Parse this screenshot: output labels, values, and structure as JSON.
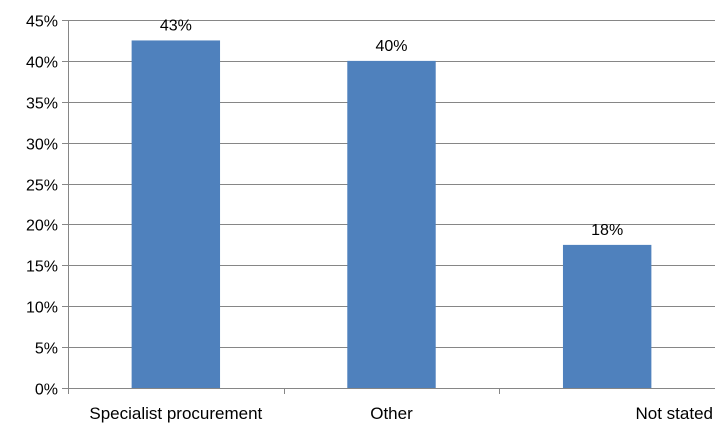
{
  "chart_data": {
    "type": "bar",
    "categories": [
      "Specialist procurement",
      "Other",
      "Not stated"
    ],
    "values": [
      42.5,
      40.0,
      17.5
    ],
    "data_labels": [
      "43%",
      "40%",
      "18%"
    ],
    "ylim": [
      0,
      45
    ],
    "yticks": [
      0,
      5,
      10,
      15,
      20,
      25,
      30,
      35,
      40,
      45
    ],
    "ytick_labels": [
      "0%",
      "5%",
      "10%",
      "15%",
      "20%",
      "25%",
      "30%",
      "35%",
      "40%",
      "45%"
    ],
    "title": "",
    "xlabel": "",
    "ylabel": "",
    "grid": true,
    "legend": "none",
    "bar_color": "#4F81BD",
    "grid_color": "#868686"
  }
}
